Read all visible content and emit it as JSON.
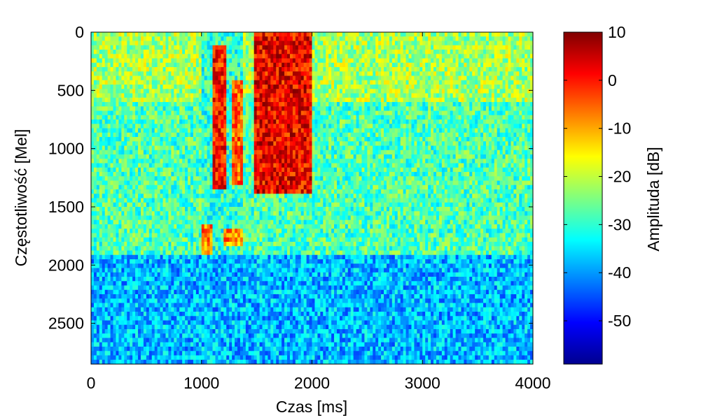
{
  "chart_data": {
    "type": "heatmap",
    "title": "",
    "xlabel": "Czas [ms]",
    "ylabel": "Częstotliwość [Mel]",
    "xlim": [
      0,
      4000
    ],
    "ylim": [
      0,
      2850
    ],
    "y_reversed": true,
    "xticks": [
      0,
      1000,
      2000,
      3000,
      4000
    ],
    "yticks": [
      0,
      500,
      1000,
      1500,
      2000,
      2500
    ],
    "colormap": "jet",
    "colorbar": {
      "label": "Amplituda [dB]",
      "range": [
        -59,
        10
      ],
      "ticks": [
        10,
        0,
        -10,
        -20,
        -30,
        -40,
        -50
      ]
    },
    "regions_db": [
      {
        "t": [
          0,
          4000
        ],
        "f": [
          0,
          600
        ],
        "level": -22
      },
      {
        "t": [
          0,
          4000
        ],
        "f": [
          600,
          1900
        ],
        "level": -28
      },
      {
        "t": [
          0,
          4000
        ],
        "f": [
          1900,
          2850
        ],
        "level": -38
      },
      {
        "t": [
          1000,
          1380
        ],
        "f": [
          0,
          1900
        ],
        "level": -30
      },
      {
        "t": [
          1100,
          1220
        ],
        "f": [
          100,
          1350
        ],
        "level": 0
      },
      {
        "t": [
          1280,
          1380
        ],
        "f": [
          400,
          1300
        ],
        "level": -5
      },
      {
        "t": [
          1480,
          2000
        ],
        "f": [
          0,
          1380
        ],
        "level": 2
      },
      {
        "t": [
          1000,
          1100
        ],
        "f": [
          1650,
          1900
        ],
        "level": -8
      },
      {
        "t": [
          1200,
          1380
        ],
        "f": [
          1700,
          1850
        ],
        "level": -8
      }
    ],
    "grid": false,
    "legend": "none"
  },
  "colors": {
    "background": "#ffffff",
    "axis": "#000000",
    "jet_low": "#00008f",
    "jet_high": "#800000"
  }
}
